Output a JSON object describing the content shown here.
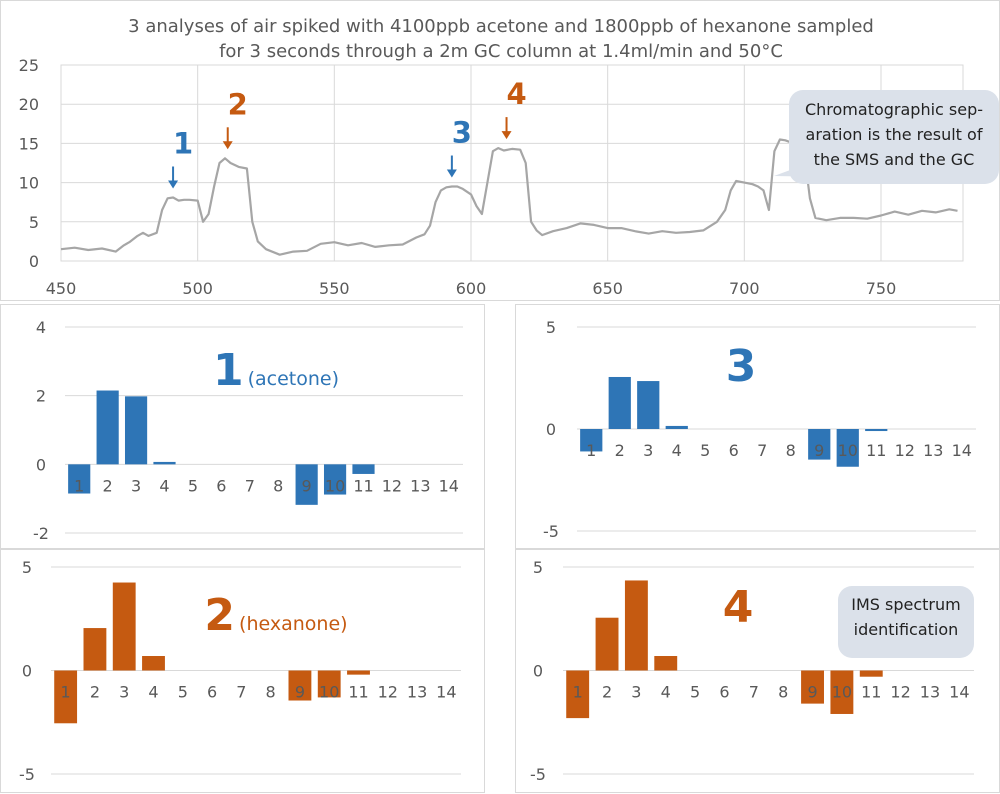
{
  "colors": {
    "blue": "#2e75b6",
    "orange": "#c55a11",
    "gray": "#a6a6a6",
    "callout": "#dbe1ea"
  },
  "chart_data": [
    {
      "type": "line",
      "title": "3 analyses of air spiked with 4100ppb acetone and 1800ppb of hexanone sampled for 3 seconds through a 2m GC column at 1.4ml/min and 50°C",
      "title_lines": [
        "3 analyses of air spiked with 4100ppb acetone and 1800ppb of hexanone sampled",
        "for 3 seconds through a 2m GC column at 1.4ml/min and 50°C"
      ],
      "xlim": [
        450,
        780
      ],
      "ylim": [
        0,
        25
      ],
      "x_ticks": [
        450,
        500,
        550,
        600,
        650,
        700,
        750
      ],
      "y_ticks": [
        0,
        5,
        10,
        15,
        20,
        25
      ],
      "grid": true,
      "series": [
        {
          "x": [
            450,
            455,
            460,
            465,
            470,
            473,
            475,
            478,
            480,
            482,
            485,
            487,
            489,
            491,
            493,
            495,
            497,
            500,
            502,
            504,
            506,
            508,
            510,
            512,
            515,
            518,
            520,
            522,
            525,
            530,
            535,
            540,
            545,
            550,
            555,
            560,
            565,
            570,
            575,
            580,
            583,
            585,
            587,
            589,
            591,
            593,
            595,
            597,
            600,
            602,
            604,
            606,
            608,
            610,
            612,
            615,
            618,
            620,
            622,
            624,
            626,
            630,
            635,
            640,
            645,
            650,
            655,
            660,
            665,
            670,
            675,
            680,
            685,
            690,
            693,
            695,
            697,
            700,
            703,
            705,
            707,
            709,
            711,
            713,
            715,
            718,
            720,
            722,
            724,
            726,
            730,
            735,
            740,
            745,
            750,
            755,
            760,
            765,
            770,
            775,
            778
          ],
          "y": [
            1.5,
            1.7,
            1.4,
            1.6,
            1.2,
            2,
            2.4,
            3.2,
            3.6,
            3.2,
            3.6,
            6.5,
            8,
            8.1,
            7.7,
            7.8,
            7.8,
            7.7,
            5,
            6,
            9.5,
            12.5,
            13.1,
            12.5,
            12,
            11.8,
            5,
            2.5,
            1.5,
            0.8,
            1.2,
            1.3,
            2.2,
            2.4,
            2,
            2.3,
            1.8,
            2,
            2.1,
            3,
            3.4,
            4.5,
            7.5,
            9,
            9.4,
            9.5,
            9.5,
            9.2,
            8.5,
            7,
            6,
            10,
            14,
            14.4,
            14.1,
            14.3,
            14.2,
            12.5,
            5,
            3.9,
            3.3,
            3.8,
            4.2,
            4.8,
            4.6,
            4.2,
            4.2,
            3.8,
            3.5,
            3.8,
            3.6,
            3.7,
            3.9,
            5,
            6.5,
            9,
            10.2,
            10,
            9.8,
            9.5,
            9,
            6.5,
            14,
            15.5,
            15.4,
            15,
            14.6,
            13.5,
            8,
            5.5,
            5.2,
            5.5,
            5.5,
            5.4,
            5.8,
            6.3,
            5.9,
            6.4,
            6.2,
            6.6,
            6.4
          ]
        }
      ],
      "annotations": [
        {
          "label": "1",
          "color": "blue",
          "x": 491,
          "y": 8.1
        },
        {
          "label": "2",
          "color": "orange",
          "x": 511,
          "y": 13.1
        },
        {
          "label": "3",
          "color": "blue",
          "x": 593,
          "y": 9.5
        },
        {
          "label": "4",
          "color": "orange",
          "x": 613,
          "y": 14.4
        }
      ],
      "callout": [
        "Chromatographic sep-",
        "aration is the result of",
        "the SMS and the GC"
      ]
    },
    {
      "type": "bar",
      "big_label": "1",
      "sub_label": "(acetone)",
      "color": "blue",
      "categories": [
        "1",
        "2",
        "3",
        "4",
        "5",
        "6",
        "7",
        "8",
        "9",
        "10",
        "11",
        "12",
        "13",
        "14"
      ],
      "values": [
        -0.85,
        2.15,
        1.98,
        0.07,
        0,
        0,
        0,
        0,
        -1.18,
        -0.88,
        -0.28,
        0,
        0,
        0
      ],
      "ylim": [
        -2,
        4
      ],
      "y_ticks": [
        -2,
        0,
        2,
        4
      ]
    },
    {
      "type": "bar",
      "big_label": "3",
      "sub_label": "",
      "color": "blue",
      "categories": [
        "1",
        "2",
        "3",
        "4",
        "5",
        "6",
        "7",
        "8",
        "9",
        "10",
        "11",
        "12",
        "13",
        "14"
      ],
      "values": [
        -1.1,
        2.55,
        2.35,
        0.15,
        0,
        0,
        0,
        0,
        -1.5,
        -1.85,
        -0.1,
        0,
        0,
        0
      ],
      "ylim": [
        -5,
        5
      ],
      "y_ticks": [
        -5,
        0,
        5
      ]
    },
    {
      "type": "bar",
      "big_label": "2",
      "sub_label": "(hexanone)",
      "color": "orange",
      "categories": [
        "1",
        "2",
        "3",
        "4",
        "5",
        "6",
        "7",
        "8",
        "9",
        "10",
        "11",
        "12",
        "13",
        "14"
      ],
      "values": [
        -2.55,
        2.05,
        4.25,
        0.7,
        0,
        0,
        0,
        0,
        -1.45,
        -1.3,
        -0.2,
        0,
        0,
        0
      ],
      "ylim": [
        -5,
        5
      ],
      "y_ticks": [
        -5,
        0,
        5
      ]
    },
    {
      "type": "bar",
      "big_label": "4",
      "sub_label": "",
      "color": "orange",
      "categories": [
        "1",
        "2",
        "3",
        "4",
        "5",
        "6",
        "7",
        "8",
        "9",
        "10",
        "11",
        "12",
        "13",
        "14"
      ],
      "values": [
        -2.3,
        2.55,
        4.35,
        0.7,
        0,
        0,
        0,
        0,
        -1.6,
        -2.1,
        -0.3,
        0,
        0,
        0
      ],
      "ylim": [
        -5,
        5
      ],
      "y_ticks": [
        -5,
        0,
        5
      ],
      "callout": [
        "IMS spectrum",
        "identification"
      ]
    }
  ]
}
